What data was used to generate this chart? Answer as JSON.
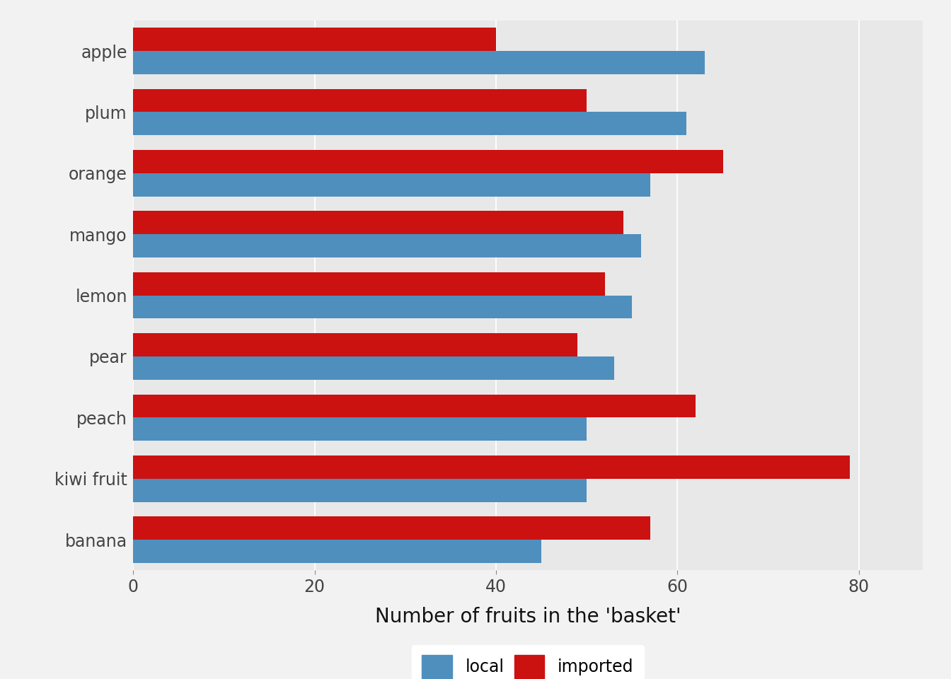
{
  "categories": [
    "apple",
    "plum",
    "orange",
    "mango",
    "lemon",
    "pear",
    "peach",
    "kiwi fruit",
    "banana"
  ],
  "local": [
    63,
    61,
    57,
    56,
    55,
    53,
    50,
    50,
    45
  ],
  "imported": [
    40,
    50,
    65,
    54,
    52,
    49,
    62,
    79,
    57
  ],
  "local_color": "#4e8fbe",
  "imported_color": "#cc1111",
  "xlabel": "Number of fruits in the 'basket'",
  "xlim": [
    0,
    87
  ],
  "xticks": [
    0,
    20,
    40,
    60,
    80
  ],
  "background_color": "#e8e8e8",
  "panel_color": "#e8e8e8",
  "grid_color": "#ffffff",
  "bar_height": 0.38,
  "legend_local": "local",
  "legend_imported": "imported",
  "axis_label_fontsize": 20,
  "tick_fontsize": 17,
  "legend_fontsize": 17,
  "label_color": "#444444"
}
